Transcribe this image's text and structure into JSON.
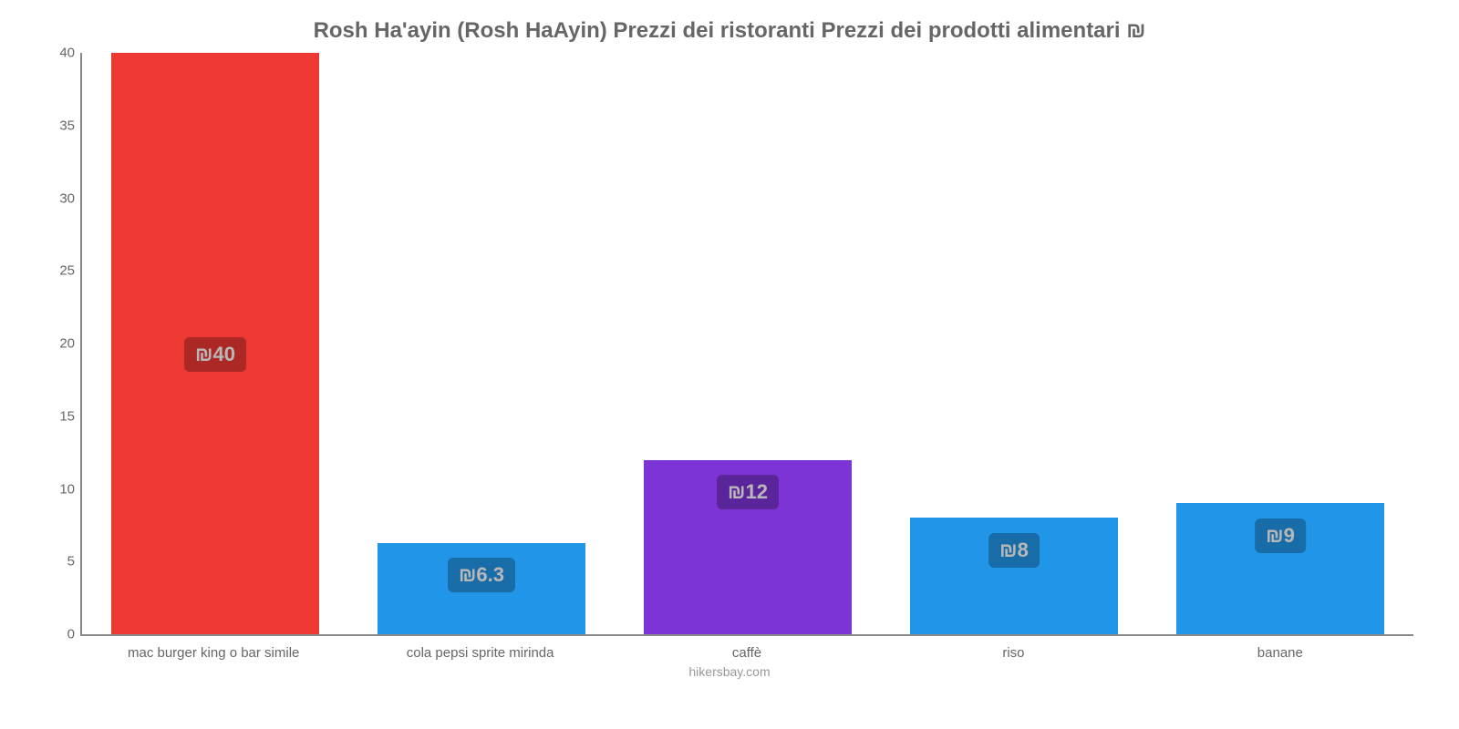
{
  "chart": {
    "type": "bar",
    "title": "Rosh Ha'ayin (Rosh HaAyin) Prezzi dei ristoranti Prezzi dei prodotti alimentari ₪",
    "title_fontsize": 24,
    "title_color": "#666666",
    "background_color": "#ffffff",
    "axis_color": "#888888",
    "bar_width_ratio": 0.78,
    "ylim": [
      0,
      40
    ],
    "ytick_step": 5,
    "y_tick_color": "#666666",
    "y_tick_fontsize": 15,
    "x_label_color": "#666666",
    "x_label_fontsize": 15,
    "value_label_fontsize": 22,
    "value_label_text_color": "#ffffff",
    "categories": [
      "mac burger king o bar simile",
      "cola pepsi sprite mirinda",
      "caffè",
      "riso",
      "banane"
    ],
    "values": [
      40,
      6.3,
      12,
      8,
      9
    ],
    "value_labels": [
      "₪40",
      "₪6.3",
      "₪12",
      "₪8",
      "₪9"
    ],
    "bar_colors": [
      "#ed3833",
      "#2196e8",
      "#7d34d6",
      "#2196e8",
      "#2196e8"
    ],
    "attribution": "hikersbay.com",
    "attribution_color": "#999999",
    "attribution_fontsize": 14
  }
}
